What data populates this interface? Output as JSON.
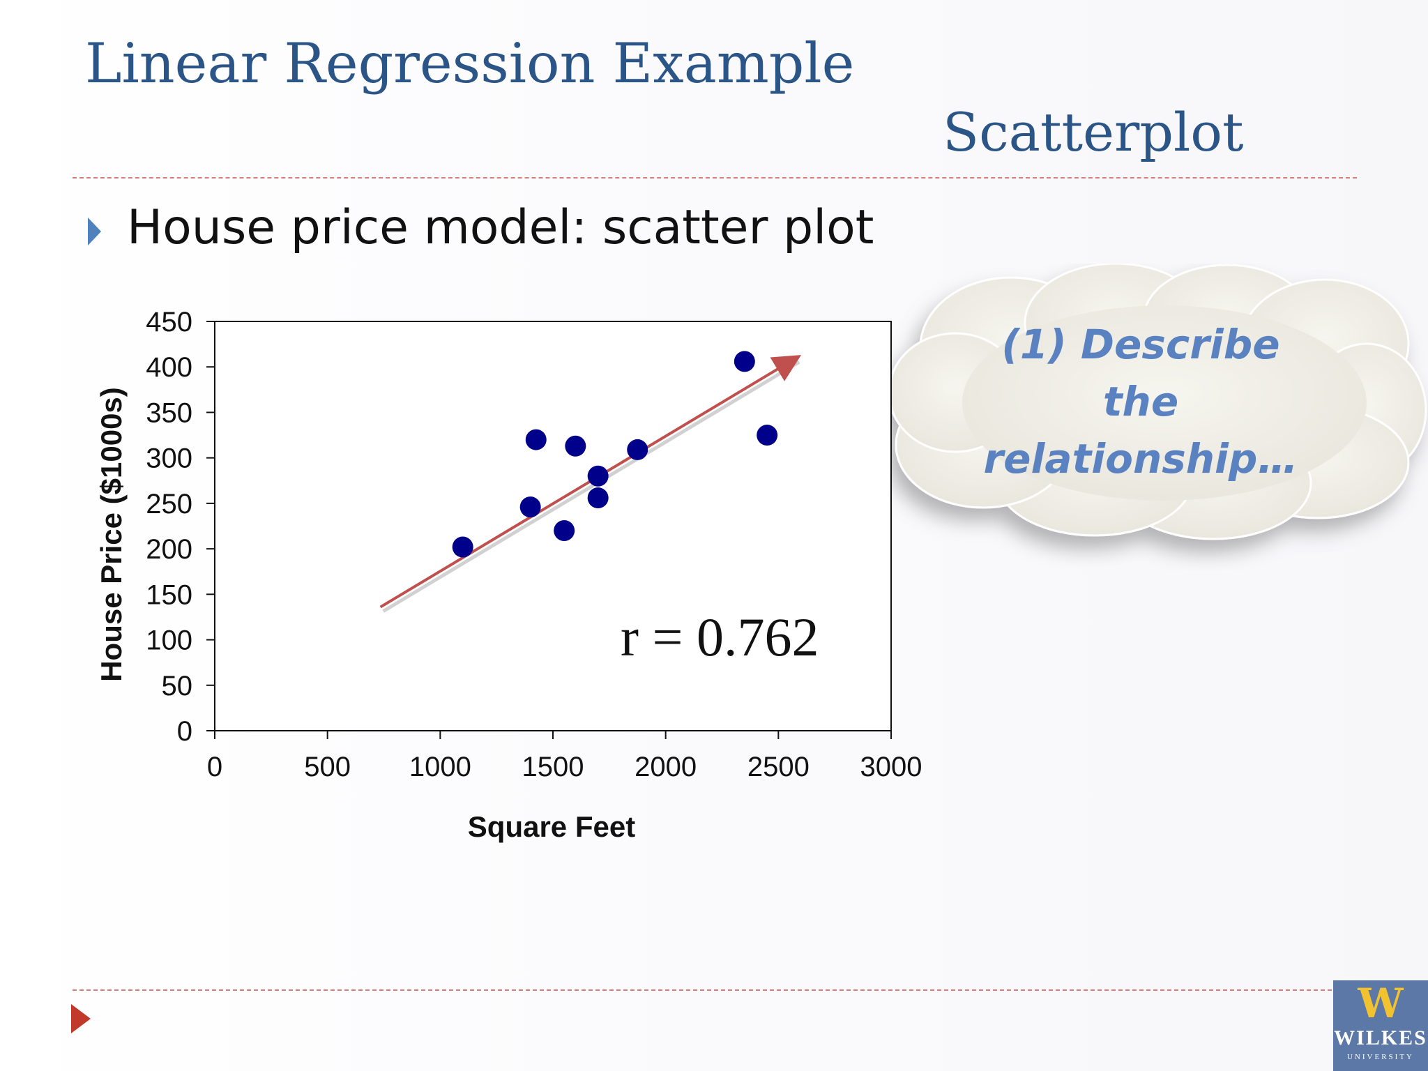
{
  "slide": {
    "title": "Linear Regression Example",
    "subtitle": "Scatterplot",
    "bullet": "House price model:  scatter plot",
    "callout_lines": [
      "(1) Describe",
      "the",
      "relationship…"
    ],
    "colors": {
      "title": "#2b5587",
      "bullet_arrow": "#4f81bd",
      "rule": "#d77b7b",
      "callout_text": "#5b82c0",
      "point": "#00008b",
      "trend_arrow": "#c0504d"
    },
    "icons": [
      "bullet-arrow-icon",
      "nav-arrow-icon",
      "wilkes-logo-icon"
    ]
  },
  "logo": {
    "mark": "W",
    "name": "WILKES",
    "sub": "UNIVERSITY"
  },
  "chart_data": {
    "type": "scatter",
    "title": "",
    "xlabel": "Square Feet",
    "ylabel": "House Price ($1000s)",
    "xlim": [
      0,
      3000
    ],
    "ylim": [
      0,
      450
    ],
    "xticks": [
      0,
      500,
      1000,
      1500,
      2000,
      2500,
      3000
    ],
    "yticks": [
      0,
      50,
      100,
      150,
      200,
      250,
      300,
      350,
      400,
      450
    ],
    "grid": false,
    "points": [
      {
        "x": 1100,
        "y": 202
      },
      {
        "x": 1400,
        "y": 246
      },
      {
        "x": 1425,
        "y": 320
      },
      {
        "x": 1550,
        "y": 220
      },
      {
        "x": 1600,
        "y": 313
      },
      {
        "x": 1700,
        "y": 280
      },
      {
        "x": 1700,
        "y": 256
      },
      {
        "x": 1875,
        "y": 309
      },
      {
        "x": 2350,
        "y": 406
      },
      {
        "x": 2450,
        "y": 325
      }
    ],
    "trend_arrow": {
      "x1": 735,
      "y1": 136,
      "x2": 2580,
      "y2": 410
    },
    "annotation": "r = 0.762"
  }
}
